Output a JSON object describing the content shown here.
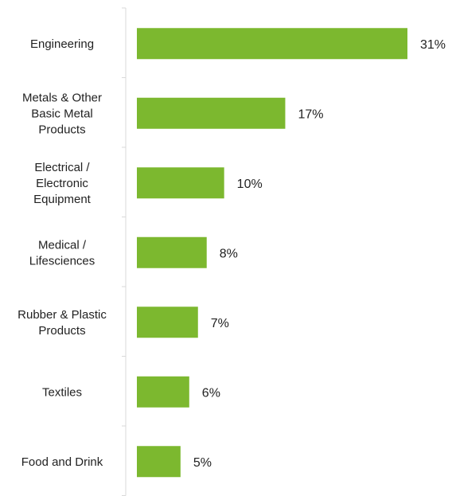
{
  "chart_data": {
    "type": "bar",
    "orientation": "horizontal",
    "categories": [
      "Engineering",
      "Metals & Other Basic Metal Products",
      "Electrical / Electronic Equipment",
      "Medical / Lifesciences",
      "Rubber & Plastic Products",
      "Textiles",
      "Food and Drink"
    ],
    "category_lines": [
      [
        "Engineering"
      ],
      [
        "Metals & Other",
        "Basic Metal",
        "Products"
      ],
      [
        "Electrical /",
        "Electronic",
        "Equipment"
      ],
      [
        "Medical /",
        "Lifesciences"
      ],
      [
        "Rubber & Plastic",
        "Products"
      ],
      [
        "Textiles"
      ],
      [
        "Food and Drink"
      ]
    ],
    "values": [
      31,
      17,
      10,
      8,
      7,
      6,
      5
    ],
    "value_labels": [
      "31%",
      "17%",
      "10%",
      "8%",
      "7%",
      "6%",
      "5%"
    ],
    "unit": "%",
    "xlim": [
      0,
      31
    ],
    "bar_color": "#7cb82f",
    "axis_color": "#d9d9d9",
    "grid": false,
    "legend": false
  }
}
